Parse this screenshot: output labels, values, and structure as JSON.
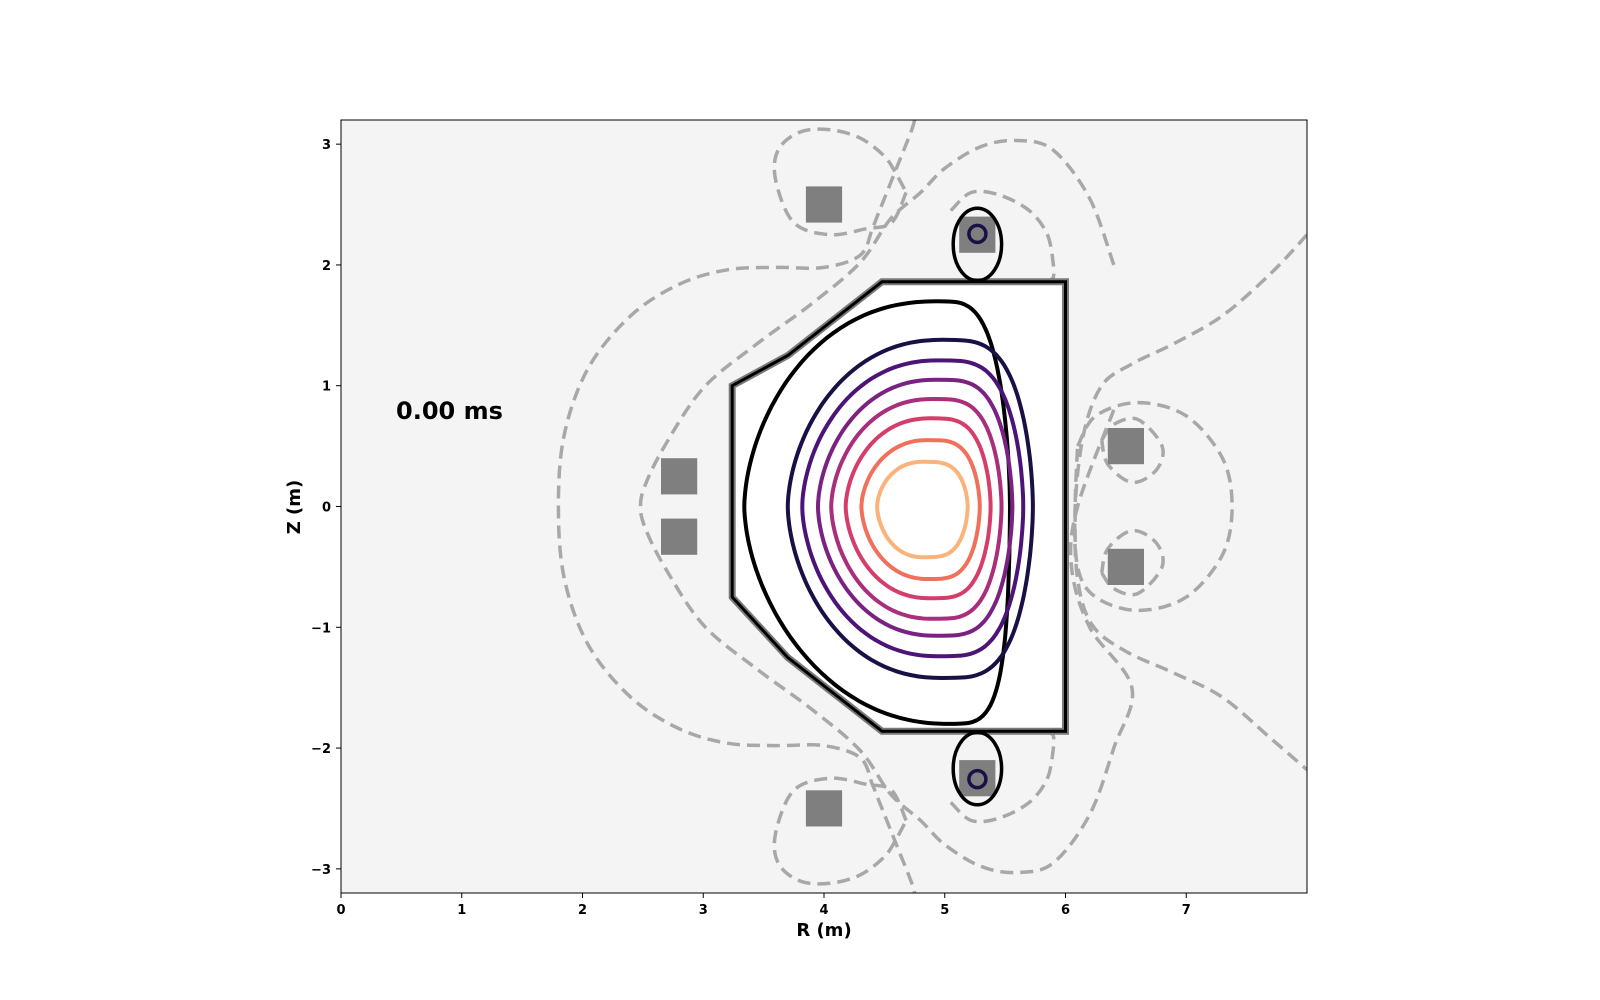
{
  "chart_data": {
    "type": "contour",
    "title": "",
    "annotation": "0.00 ms",
    "xlabel": "R (m)",
    "ylabel": "Z (m)",
    "xlim": [
      0,
      8
    ],
    "ylim": [
      -3.2,
      3.2
    ],
    "xticks": [
      0,
      1,
      2,
      3,
      4,
      5,
      6,
      7
    ],
    "yticks": [
      -3,
      -2,
      -1,
      0,
      1,
      2,
      3
    ],
    "background": "#f4f4f4",
    "vessel": {
      "r": [
        3.24,
        3.24,
        3.7,
        4.48,
        6.0,
        6.0,
        4.48,
        3.7,
        3.24
      ],
      "z": [
        1.0,
        -0.75,
        -1.25,
        -1.86,
        -1.86,
        1.86,
        1.86,
        1.25,
        1.0
      ]
    },
    "coils": [
      {
        "r": 4.0,
        "z": 2.5
      },
      {
        "r": 5.27,
        "z": 2.25
      },
      {
        "r": 2.8,
        "z": 0.25
      },
      {
        "r": 2.8,
        "z": -0.25
      },
      {
        "r": 6.5,
        "z": 0.5
      },
      {
        "r": 6.5,
        "z": -0.5
      },
      {
        "r": 4.0,
        "z": -2.5
      },
      {
        "r": 5.27,
        "z": -2.25
      }
    ],
    "coil_size_m": 0.3,
    "flux_surfaces": [
      {
        "color": "#000000",
        "r0": 4.94,
        "z0": 0.0,
        "a_in": 1.6,
        "a_out": 0.6,
        "b_up": 1.7,
        "b_down": 1.8,
        "shift_top": 0.0,
        "shift_bot": 0.1
      },
      {
        "color": "#1a1045",
        "r0": 4.98,
        "z0": 0.0,
        "a_in": 1.28,
        "a_out": 0.75,
        "b_up": 1.38,
        "b_down": 1.42,
        "shift_top": 0.0,
        "shift_bot": 0.0
      },
      {
        "color": "#4b1476",
        "r0": 4.95,
        "z0": 0.0,
        "a_in": 1.13,
        "a_out": 0.7,
        "b_up": 1.21,
        "b_down": 1.24,
        "shift_top": 0.0,
        "shift_bot": 0.0
      },
      {
        "color": "#7a2282",
        "r0": 4.93,
        "z0": 0.0,
        "a_in": 0.98,
        "a_out": 0.63,
        "b_up": 1.05,
        "b_down": 1.07,
        "shift_top": 0.0,
        "shift_bot": 0.0
      },
      {
        "color": "#a92e7c",
        "r0": 4.9,
        "z0": 0.0,
        "a_in": 0.84,
        "a_out": 0.57,
        "b_up": 0.89,
        "b_down": 0.93,
        "shift_top": 0.0,
        "shift_bot": 0.0
      },
      {
        "color": "#d53e6b",
        "r0": 4.88,
        "z0": 0.0,
        "a_in": 0.7,
        "a_out": 0.5,
        "b_up": 0.73,
        "b_down": 0.76,
        "shift_top": 0.0,
        "shift_bot": 0.0
      },
      {
        "color": "#f1705c",
        "r0": 4.86,
        "z0": 0.0,
        "a_in": 0.55,
        "a_out": 0.43,
        "b_up": 0.55,
        "b_down": 0.6,
        "shift_top": 0.0,
        "shift_bot": 0.0
      },
      {
        "color": "#fbb37c",
        "r0": 4.82,
        "z0": 0.0,
        "a_in": 0.38,
        "a_out": 0.37,
        "b_up": 0.37,
        "b_down": 0.42,
        "shift_top": 0.0,
        "shift_bot": 0.0
      }
    ],
    "x_point_lobes": [
      {
        "r": 5.27,
        "z": 2.17,
        "w": 0.2,
        "h": 0.3,
        "ring": 0.07
      },
      {
        "r": 5.27,
        "z": -2.17,
        "w": 0.2,
        "h": 0.3,
        "ring": 0.07
      }
    ],
    "vacuum_field_lines": [
      {
        "r": [
          4.75,
          4.72,
          4.6,
          4.5,
          4.44,
          4.4,
          4.3,
          4.0,
          3.6,
          3.2,
          2.8,
          2.4,
          2.05,
          1.85,
          1.8,
          1.85,
          2.05,
          2.4,
          2.8,
          3.2,
          3.6,
          4.0,
          4.3,
          4.4,
          4.44,
          4.5,
          4.6,
          4.72,
          4.75
        ],
        "z": [
          3.2,
          3.1,
          2.8,
          2.55,
          2.4,
          2.3,
          2.08,
          1.98,
          1.98,
          1.96,
          1.84,
          1.58,
          1.15,
          0.6,
          0.0,
          -0.6,
          -1.15,
          -1.58,
          -1.84,
          -1.96,
          -1.98,
          -1.98,
          -2.08,
          -2.3,
          -2.4,
          -2.55,
          -2.8,
          -3.1,
          -3.2
        ]
      },
      {
        "r": [
          6.4,
          6.2,
          5.9,
          5.6,
          5.3,
          5.0,
          4.8,
          4.55,
          4.3,
          3.9,
          3.45,
          3.0,
          2.68,
          2.52,
          2.48,
          2.52,
          2.68,
          3.0,
          3.45,
          3.9,
          4.3,
          4.55,
          4.8,
          5.0,
          5.3,
          5.6,
          5.9,
          6.2,
          6.4,
          6.55,
          6.2,
          6.05,
          6.1,
          6.4
        ],
        "z": [
          2.0,
          2.55,
          2.95,
          3.03,
          2.98,
          2.8,
          2.6,
          2.38,
          2.02,
          1.68,
          1.35,
          0.98,
          0.5,
          0.18,
          0.0,
          -0.18,
          -0.5,
          -0.98,
          -1.35,
          -1.68,
          -2.02,
          -2.38,
          -2.6,
          -2.8,
          -2.98,
          -3.03,
          -2.95,
          -2.55,
          -2.0,
          -1.5,
          -1.0,
          -0.5,
          0.0,
          0.8
        ]
      },
      {
        "r": [
          8.0,
          7.7,
          7.3,
          6.9,
          6.55,
          6.3,
          6.15,
          6.08,
          6.1,
          6.22,
          6.5,
          6.9,
          7.3,
          7.7,
          8.0
        ],
        "z": [
          2.25,
          1.93,
          1.58,
          1.35,
          1.18,
          1.0,
          0.6,
          0.0,
          -0.6,
          -0.98,
          -1.2,
          -1.38,
          -1.58,
          -1.92,
          -2.18
        ]
      },
      {
        "r": [
          6.1,
          6.25,
          6.6,
          7.0,
          7.3,
          7.38,
          7.3,
          7.0,
          6.6,
          6.25,
          6.1,
          6.08,
          6.1
        ],
        "z": [
          0.5,
          0.75,
          0.86,
          0.75,
          0.4,
          0.0,
          -0.4,
          -0.75,
          -0.86,
          -0.75,
          -0.5,
          0.0,
          0.5
        ]
      },
      {
        "r": [
          4.68,
          4.56,
          4.35,
          4.05,
          3.75,
          3.6,
          3.62,
          3.8,
          4.05,
          4.3,
          4.5,
          4.6,
          4.68
        ],
        "z": [
          2.6,
          2.35,
          2.3,
          2.25,
          2.35,
          2.7,
          2.95,
          3.1,
          3.12,
          3.05,
          2.9,
          2.75,
          2.6
        ]
      },
      {
        "r": [
          4.68,
          4.56,
          4.35,
          4.05,
          3.75,
          3.6,
          3.62,
          3.8,
          4.05,
          4.3,
          4.5,
          4.6,
          4.68
        ],
        "z": [
          -2.6,
          -2.35,
          -2.3,
          -2.25,
          -2.35,
          -2.7,
          -2.95,
          -3.1,
          -3.12,
          -3.05,
          -2.9,
          -2.75,
          -2.6
        ]
      },
      {
        "r": [
          6.3,
          6.4,
          6.6,
          6.8,
          6.75,
          6.55,
          6.35,
          6.3
        ],
        "z": [
          0.55,
          0.68,
          0.72,
          0.5,
          0.3,
          0.2,
          0.35,
          0.55
        ]
      },
      {
        "r": [
          6.3,
          6.4,
          6.6,
          6.8,
          6.75,
          6.55,
          6.35,
          6.3
        ],
        "z": [
          -0.55,
          -0.68,
          -0.72,
          -0.5,
          -0.3,
          -0.2,
          -0.35,
          -0.55
        ]
      },
      {
        "r": [
          5.05,
          5.22,
          5.45,
          5.7,
          5.85,
          5.9,
          5.9,
          5.88
        ],
        "z": [
          2.45,
          2.6,
          2.58,
          2.45,
          2.25,
          2.0,
          1.9,
          1.88
        ]
      },
      {
        "r": [
          5.05,
          5.22,
          5.45,
          5.7,
          5.85,
          5.9,
          5.9,
          5.88
        ],
        "z": [
          -2.45,
          -2.6,
          -2.58,
          -2.45,
          -2.25,
          -2.0,
          -1.9,
          -1.88
        ]
      }
    ]
  }
}
